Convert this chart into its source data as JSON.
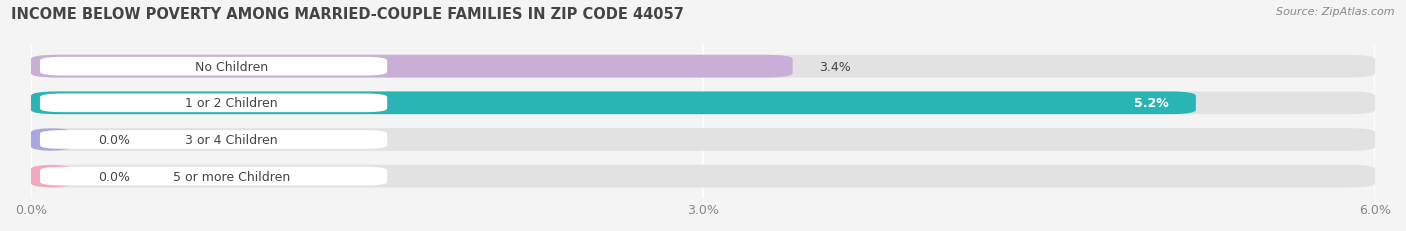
{
  "title": "INCOME BELOW POVERTY AMONG MARRIED-COUPLE FAMILIES IN ZIP CODE 44057",
  "source": "Source: ZipAtlas.com",
  "categories": [
    "No Children",
    "1 or 2 Children",
    "3 or 4 Children",
    "5 or more Children"
  ],
  "values": [
    3.4,
    5.2,
    0.0,
    0.0
  ],
  "bar_colors": [
    "#c9aed6",
    "#29b5b5",
    "#a8a8e0",
    "#f5a8bc"
  ],
  "xlim": [
    0,
    6.0
  ],
  "xticks": [
    0.0,
    3.0,
    6.0
  ],
  "xtick_labels": [
    "0.0%",
    "3.0%",
    "6.0%"
  ],
  "value_labels": [
    "3.4%",
    "5.2%",
    "0.0%",
    "0.0%"
  ],
  "value_inside": [
    false,
    true,
    false,
    false
  ],
  "bar_height": 0.62,
  "background_color": "#f4f4f4",
  "bar_background_color": "#e2e2e2",
  "label_pill_color": "#ffffff",
  "title_fontsize": 10.5,
  "label_fontsize": 9,
  "value_fontsize": 9,
  "source_fontsize": 8,
  "text_color": "#444444",
  "grid_color": "#ffffff",
  "axis_text_color": "#888888"
}
